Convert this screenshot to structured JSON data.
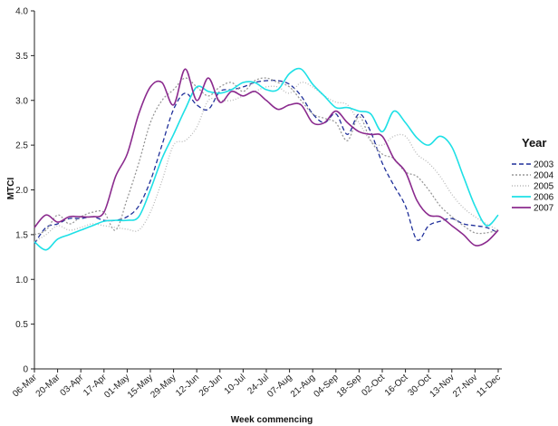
{
  "chart_data": {
    "type": "line",
    "title": "",
    "xlabel": "Week commencing",
    "ylabel": "MTCI",
    "ylim": [
      0,
      4.0
    ],
    "yticks": [
      "0",
      "0.5",
      "1.0",
      "1.5",
      "2.0",
      "2.5",
      "3.0",
      "3.5",
      "4.0"
    ],
    "categories": [
      "06-Mar",
      "20-Mar",
      "03-Apr",
      "17-Apr",
      "01-May",
      "15-May",
      "29-May",
      "12-Jun",
      "26-Jun",
      "10-Jul",
      "24-Jul",
      "07-Aug",
      "21-Aug",
      "04-Sep",
      "18-Sep",
      "02-Oct",
      "16-Oct",
      "30-Oct",
      "13-Nov",
      "27-Nov",
      "11-Dec"
    ],
    "grid": false,
    "legend": {
      "title": "Year",
      "placement": "right"
    },
    "series": [
      {
        "name": "2003",
        "color": "#1f2f9a",
        "dash": "5,3",
        "x": [
          0,
          0.5,
          1,
          1.5,
          2,
          2.5,
          3,
          3.5,
          4,
          4.5,
          5,
          5.5,
          6,
          6.5,
          7,
          7.5,
          8,
          8.5,
          9,
          9.5,
          10,
          10.5,
          11,
          11.5,
          12,
          12.5,
          13,
          13.5,
          14,
          14.5,
          15,
          15.5,
          16,
          16.5,
          17,
          17.5,
          18,
          18.5,
          19,
          19.5,
          20
        ],
        "y": [
          1.4,
          1.58,
          1.62,
          1.68,
          1.68,
          1.7,
          1.66,
          1.66,
          1.7,
          1.82,
          2.1,
          2.5,
          2.9,
          3.08,
          2.95,
          2.9,
          3.1,
          3.12,
          3.15,
          3.2,
          3.22,
          3.22,
          3.18,
          3.05,
          2.85,
          2.75,
          2.85,
          2.62,
          2.85,
          2.65,
          2.3,
          2.05,
          1.82,
          1.44,
          1.6,
          1.65,
          1.68,
          1.62,
          1.6,
          1.58,
          1.52
        ]
      },
      {
        "name": "2004",
        "color": "#999999",
        "dash": "2,2",
        "x": [
          0,
          0.5,
          1,
          1.5,
          2,
          2.5,
          3,
          3.5,
          4,
          4.5,
          5,
          5.5,
          6,
          6.5,
          7,
          7.5,
          8,
          8.5,
          9,
          9.5,
          10,
          10.5,
          11,
          11.5,
          12,
          12.5,
          13,
          13.5,
          14,
          14.5,
          15,
          15.5,
          16,
          16.5,
          17,
          17.5,
          18,
          18.5,
          19,
          19.5,
          20
        ],
        "y": [
          1.5,
          1.55,
          1.72,
          1.62,
          1.7,
          1.75,
          1.75,
          1.55,
          1.9,
          2.3,
          2.75,
          3.0,
          3.12,
          3.25,
          3.15,
          3.05,
          3.15,
          3.2,
          3.1,
          3.22,
          3.25,
          3.2,
          3.15,
          3.0,
          2.85,
          2.8,
          2.75,
          2.55,
          2.82,
          2.55,
          2.4,
          2.35,
          2.2,
          2.15,
          2.0,
          1.82,
          1.7,
          1.6,
          1.52,
          1.52,
          1.55
        ]
      },
      {
        "name": "2005",
        "color": "#b8b8b8",
        "dash": "1,2",
        "x": [
          0,
          0.5,
          1,
          1.5,
          2,
          2.5,
          3,
          3.5,
          4,
          4.5,
          5,
          5.5,
          6,
          6.5,
          7,
          7.5,
          8,
          8.5,
          9,
          9.5,
          10,
          10.5,
          11,
          11.5,
          12,
          12.5,
          13,
          13.5,
          14,
          14.5,
          15,
          15.5,
          16,
          16.5,
          17,
          17.5,
          18,
          18.5,
          19,
          19.5,
          20
        ],
        "y": [
          1.42,
          1.5,
          1.6,
          1.55,
          1.58,
          1.62,
          1.6,
          1.58,
          1.56,
          1.55,
          1.75,
          2.1,
          2.5,
          2.55,
          2.7,
          3.0,
          3.0,
          3.0,
          3.05,
          3.1,
          3.15,
          3.15,
          3.08,
          3.2,
          3.15,
          3.05,
          2.98,
          2.95,
          2.75,
          2.55,
          2.5,
          2.6,
          2.6,
          2.4,
          2.3,
          2.15,
          1.95,
          1.8,
          1.7,
          1.62,
          1.55
        ]
      },
      {
        "name": "2006",
        "color": "#1ee0e6",
        "dash": "",
        "x": [
          0,
          0.5,
          1,
          1.5,
          2,
          2.5,
          3,
          3.5,
          4,
          4.5,
          5,
          5.5,
          6,
          6.5,
          7,
          7.5,
          8,
          8.5,
          9,
          9.5,
          10,
          10.5,
          11,
          11.5,
          12,
          12.5,
          13,
          13.5,
          14,
          14.5,
          15,
          15.5,
          16,
          16.5,
          17,
          17.5,
          18,
          18.5,
          19,
          19.5,
          20
        ],
        "y": [
          1.42,
          1.33,
          1.45,
          1.5,
          1.55,
          1.6,
          1.65,
          1.66,
          1.66,
          1.7,
          2.0,
          2.35,
          2.62,
          2.9,
          3.15,
          3.1,
          3.08,
          3.12,
          3.2,
          3.2,
          3.12,
          3.12,
          3.3,
          3.35,
          3.18,
          3.05,
          2.92,
          2.92,
          2.88,
          2.85,
          2.65,
          2.88,
          2.75,
          2.58,
          2.5,
          2.6,
          2.48,
          2.15,
          1.82,
          1.6,
          1.72
        ]
      },
      {
        "name": "2007",
        "color": "#8b2b8e",
        "dash": "",
        "x": [
          0,
          0.5,
          1,
          1.5,
          2,
          2.5,
          3,
          3.5,
          4,
          4.5,
          5,
          5.5,
          6,
          6.5,
          7,
          7.5,
          8,
          8.5,
          9,
          9.5,
          10,
          10.5,
          11,
          11.5,
          12,
          12.5,
          13,
          13.5,
          14,
          14.5,
          15,
          15.5,
          16,
          16.5,
          17,
          17.5,
          18,
          18.5,
          19,
          19.5,
          20
        ],
        "y": [
          1.58,
          1.72,
          1.64,
          1.7,
          1.7,
          1.7,
          1.75,
          2.15,
          2.4,
          2.85,
          3.15,
          3.2,
          2.95,
          3.35,
          3.0,
          3.25,
          2.98,
          3.1,
          3.05,
          3.1,
          3.0,
          2.9,
          2.95,
          2.95,
          2.75,
          2.75,
          2.88,
          2.75,
          2.65,
          2.62,
          2.6,
          2.35,
          2.2,
          1.88,
          1.72,
          1.7,
          1.6,
          1.5,
          1.38,
          1.42,
          1.55
        ]
      }
    ]
  }
}
